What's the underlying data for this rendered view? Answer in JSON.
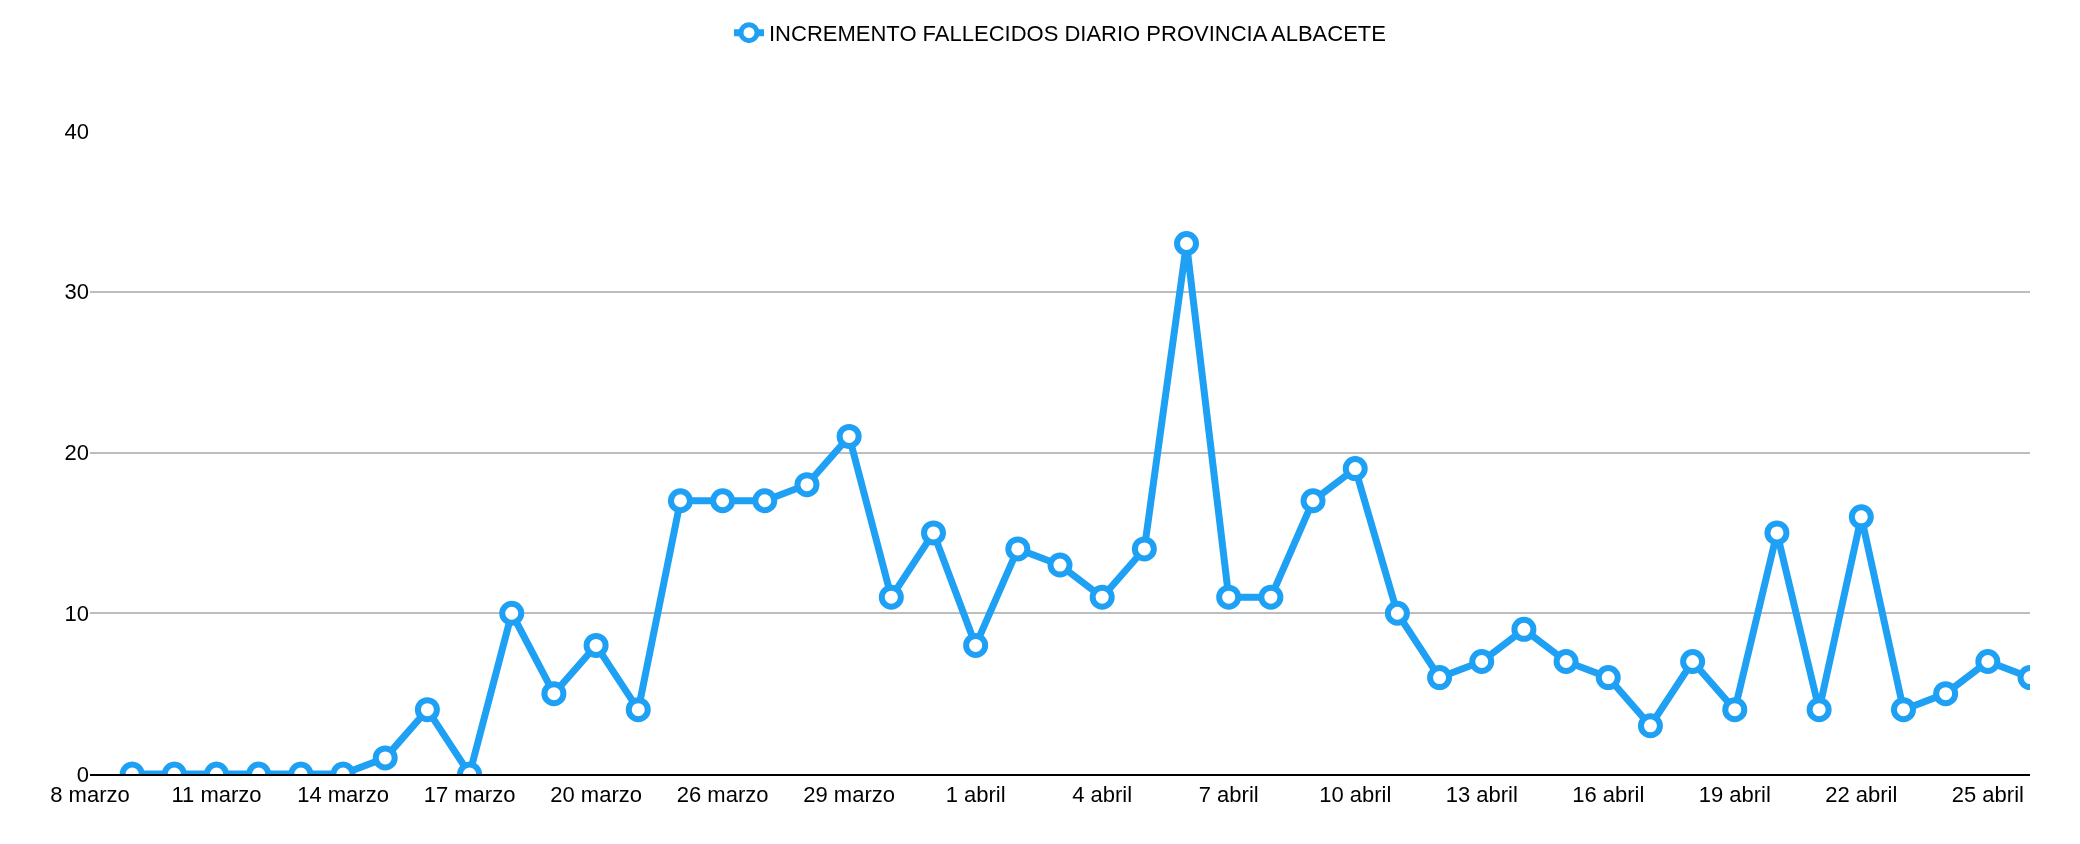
{
  "chart_data": {
    "type": "line",
    "categories": [
      "8 marzo",
      null,
      null,
      "11 marzo",
      null,
      null,
      "14 marzo",
      null,
      null,
      "17 marzo",
      null,
      null,
      "20 marzo",
      null,
      null,
      "26 marzo",
      null,
      null,
      "29 marzo",
      null,
      null,
      "1 abril",
      null,
      null,
      "4 abril",
      null,
      null,
      "7 abril",
      null,
      null,
      "10 abril",
      null,
      null,
      "13 abril",
      null,
      null,
      "16 abril",
      null,
      null,
      "19 abril",
      null,
      null,
      "22 abril",
      null,
      null,
      "25 abril",
      null
    ],
    "series": [
      {
        "name": "INCREMENTO FALLECIDOS DIARIO PROVINCIA ALBACETE",
        "color": "#1ea0f5",
        "values": [
          null,
          0,
          0,
          0,
          0,
          0,
          0,
          1,
          4,
          0,
          10,
          5,
          8,
          4,
          17,
          17,
          17,
          18,
          21,
          11,
          15,
          8,
          14,
          13,
          11,
          14,
          33,
          11,
          11,
          17,
          19,
          10,
          6,
          7,
          9,
          7,
          6,
          3,
          7,
          4,
          15,
          4,
          16,
          4,
          5,
          7,
          6
        ]
      }
    ],
    "ylim": [
      0,
      40
    ],
    "yticks": [
      0,
      10,
      20,
      30,
      40
    ],
    "grid": "y",
    "legend": "top",
    "marker": "circle",
    "line_style": "solid"
  }
}
